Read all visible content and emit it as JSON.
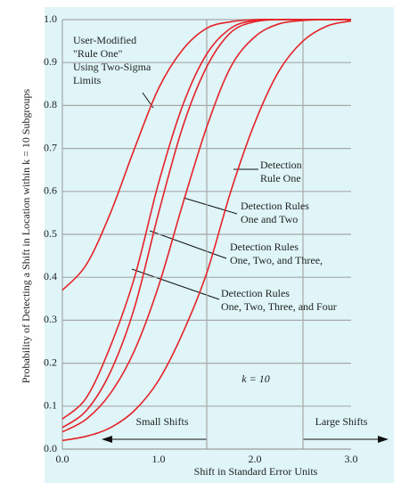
{
  "chart_data": {
    "type": "line",
    "x_label": "Shift in Standard Error Units",
    "y_label": "Probability of Detecting a Shift in Location within k = 10 Subgroups",
    "x": [
      0,
      0.25,
      0.5,
      0.75,
      1,
      1.25,
      1.5,
      1.75,
      2,
      2.25,
      2.5,
      2.75,
      3
    ],
    "xlim": [
      0,
      3
    ],
    "xticks": [
      {
        "value": 0,
        "label": "0.0"
      },
      {
        "value": 1,
        "label": "1.0"
      },
      {
        "value": 2,
        "label": "2.0"
      },
      {
        "value": 3,
        "label": "3.0"
      }
    ],
    "ylim": [
      0,
      1
    ],
    "yticks": [
      {
        "value": 0,
        "label": "0.0"
      },
      0.1,
      0.2,
      0.3,
      0.4,
      0.5,
      0.6,
      0.7,
      0.8,
      0.9,
      {
        "value": 1,
        "label": "1.0"
      }
    ],
    "grid": true,
    "vlines": [
      1.5,
      2.5
    ],
    "series": [
      {
        "label": [
          "User-Modified",
          "\"Rule One\"",
          "Using Two-Sigma",
          "Limits"
        ],
        "color": "#e52228",
        "values": [
          0.37,
          0.43,
          0.55,
          0.7,
          0.84,
          0.93,
          0.98,
          0.995,
          1,
          1,
          1,
          1,
          1
        ]
      },
      {
        "label": [
          "Detection Rules",
          "One, Two, Three, and Four"
        ],
        "color": "#e52228",
        "values": [
          0.07,
          0.12,
          0.24,
          0.4,
          0.62,
          0.8,
          0.92,
          0.98,
          0.998,
          1,
          1,
          1,
          1
        ]
      },
      {
        "label": [
          "Detection Rules",
          "One, Two, and Three,"
        ],
        "color": "#e52228",
        "values": [
          0.05,
          0.09,
          0.18,
          0.33,
          0.55,
          0.75,
          0.89,
          0.97,
          0.995,
          1,
          1,
          1,
          1
        ]
      },
      {
        "label": [
          "Detection Rules",
          "One and Two"
        ],
        "color": "#e52228",
        "values": [
          0.04,
          0.07,
          0.13,
          0.23,
          0.38,
          0.57,
          0.75,
          0.89,
          0.96,
          0.99,
          0.998,
          1,
          1
        ]
      },
      {
        "label": [
          "Detection",
          "Rule One"
        ],
        "color": "#e52228",
        "values": [
          0.02,
          0.03,
          0.05,
          0.09,
          0.16,
          0.27,
          0.41,
          0.6,
          0.76,
          0.88,
          0.95,
          0.985,
          0.997
        ]
      }
    ],
    "annotations": {
      "small": "Small Shifts",
      "large": "Large Shifts",
      "k": "k = 10"
    }
  }
}
